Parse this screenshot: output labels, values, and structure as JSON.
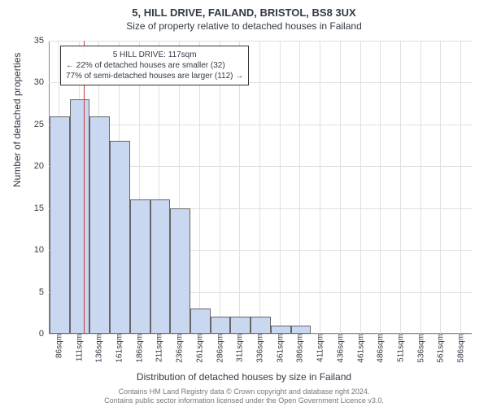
{
  "title_main": "5, HILL DRIVE, FAILAND, BRISTOL, BS8 3UX",
  "title_sub": "Size of property relative to detached houses in Failand",
  "ylabel": "Number of detached properties",
  "xlabel": "Distribution of detached houses by size in Failand",
  "chart": {
    "type": "histogram",
    "bar_fill": "#c9d7f0",
    "bar_stroke": "#666666",
    "grid_color": "#e0e0e0",
    "background": "#ffffff",
    "marker_color": "#c04040",
    "marker_x_value": 117,
    "xlim": [
      74,
      600
    ],
    "ylim": [
      0,
      35
    ],
    "ytick_step": 5,
    "xtick_start": 86,
    "xtick_step": 25,
    "xtick_suffix": "sqm",
    "bar_bin_start": 75,
    "bar_bin_width": 25,
    "values": [
      26,
      28,
      26,
      23,
      16,
      16,
      15,
      3,
      2,
      2,
      2,
      1,
      1,
      0,
      0,
      0,
      0,
      0,
      0,
      0,
      0
    ]
  },
  "annotation": {
    "line1": "5 HILL DRIVE: 117sqm",
    "line2": "← 22% of detached houses are smaller (32)",
    "line3": "77% of semi-detached houses are larger (112) →"
  },
  "footer": {
    "line1": "Contains HM Land Registry data © Crown copyright and database right 2024.",
    "line2": "Contains public sector information licensed under the Open Government Licence v3.0."
  }
}
